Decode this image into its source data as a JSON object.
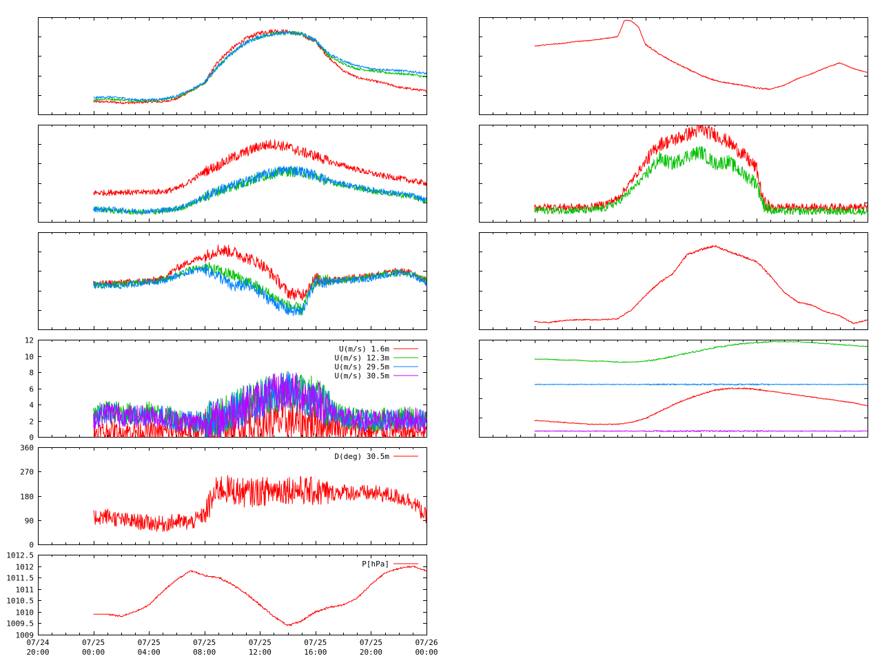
{
  "colors": {
    "red": "#ff0000",
    "green": "#00c000",
    "blue": "#0080ff",
    "purple": "#c000ff",
    "axis": "#000000"
  },
  "time_axis": {
    "tick_labels": [
      {
        "date": "07/24",
        "time": "20:00"
      },
      {
        "date": "07/25",
        "time": "00:00"
      },
      {
        "date": "07/25",
        "time": "04:00"
      },
      {
        "date": "07/25",
        "time": "08:00"
      },
      {
        "date": "07/25",
        "time": "12:00"
      },
      {
        "date": "07/25",
        "time": "16:00"
      },
      {
        "date": "07/25",
        "time": "20:00"
      },
      {
        "date": "07/26",
        "time": "00:00"
      }
    ],
    "range_hours": [
      "07/24 20:00",
      "07/26 00:00"
    ]
  },
  "chart_data": [
    {
      "id": "temp-profile",
      "type": "line",
      "grid": false,
      "x_hours": [
        0,
        1,
        2,
        3,
        4,
        5,
        6,
        7,
        8,
        9,
        10,
        11,
        12,
        13,
        14,
        15,
        16,
        17,
        18,
        19,
        20,
        21,
        22,
        23,
        24
      ],
      "ylim": [
        0,
        100
      ],
      "series": [
        {
          "color": "red",
          "values": [
            13,
            13,
            12,
            12,
            13,
            13,
            16,
            24,
            32,
            55,
            68,
            78,
            84,
            86,
            85,
            82,
            75,
            58,
            45,
            38,
            35,
            32,
            28,
            26,
            24
          ]
        },
        {
          "color": "green",
          "values": [
            15,
            16,
            15,
            14,
            14,
            15,
            18,
            24,
            32,
            50,
            63,
            74,
            80,
            83,
            84,
            83,
            76,
            60,
            52,
            47,
            45,
            43,
            42,
            41,
            38
          ]
        },
        {
          "color": "blue",
          "values": [
            17,
            18,
            17,
            15,
            15,
            16,
            19,
            25,
            33,
            50,
            63,
            74,
            80,
            83,
            84,
            83,
            76,
            62,
            55,
            50,
            47,
            46,
            45,
            44,
            42
          ]
        }
      ]
    },
    {
      "id": "right-step",
      "type": "line",
      "grid": false,
      "x_hours": [
        0,
        1,
        2,
        3,
        4,
        5,
        6,
        6.5,
        7,
        7.5,
        8,
        9,
        10,
        11,
        12,
        13,
        14,
        15,
        16,
        17,
        18,
        19,
        20,
        21,
        22,
        23,
        24
      ],
      "ylim": [
        0,
        100
      ],
      "series": [
        {
          "color": "red",
          "values": [
            70,
            72,
            73,
            75,
            76,
            78,
            80,
            97,
            96,
            90,
            72,
            62,
            54,
            47,
            40,
            35,
            32,
            30,
            27,
            26,
            30,
            37,
            42,
            48,
            53,
            47,
            43
          ]
        }
      ]
    },
    {
      "id": "row2-left",
      "type": "line",
      "grid": false,
      "x_hours": [
        0,
        1,
        2,
        3,
        4,
        5,
        6,
        7,
        8,
        9,
        10,
        11,
        12,
        13,
        14,
        15,
        16,
        17,
        18,
        19,
        20,
        21,
        22,
        23,
        24
      ],
      "ylim": [
        0,
        100
      ],
      "series": [
        {
          "color": "red",
          "values": [
            30,
            30,
            31,
            30,
            31,
            31,
            34,
            42,
            52,
            58,
            66,
            72,
            78,
            80,
            77,
            72,
            68,
            62,
            58,
            54,
            50,
            47,
            45,
            42,
            40
          ]
        },
        {
          "color": "green",
          "values": [
            13,
            12,
            11,
            10,
            10,
            11,
            13,
            18,
            25,
            32,
            36,
            41,
            46,
            50,
            52,
            51,
            47,
            41,
            38,
            35,
            32,
            30,
            28,
            26,
            21
          ]
        },
        {
          "color": "blue",
          "values": [
            13,
            13,
            12,
            11,
            11,
            12,
            14,
            19,
            26,
            33,
            37,
            42,
            47,
            51,
            54,
            52,
            48,
            42,
            39,
            36,
            33,
            31,
            29,
            27,
            22
          ]
        }
      ]
    },
    {
      "id": "row2-right",
      "type": "line",
      "grid": false,
      "x_hours": [
        0,
        1,
        2,
        3,
        4,
        5,
        6,
        7,
        8,
        9,
        10,
        11,
        12,
        13,
        14,
        15,
        16,
        16.5,
        17,
        18,
        19,
        20,
        21,
        22,
        23,
        24
      ],
      "ylim": [
        0,
        100
      ],
      "series": [
        {
          "color": "red",
          "values": [
            15,
            15,
            15,
            15,
            15,
            18,
            24,
            42,
            62,
            80,
            84,
            90,
            95,
            90,
            82,
            70,
            55,
            20,
            15,
            15,
            15,
            15,
            15,
            15,
            15,
            15
          ]
        },
        {
          "color": "green",
          "values": [
            12,
            12,
            12,
            12,
            12,
            14,
            20,
            33,
            48,
            65,
            60,
            68,
            72,
            60,
            62,
            50,
            40,
            18,
            12,
            11,
            11,
            11,
            11,
            11,
            11,
            11
          ]
        }
      ]
    },
    {
      "id": "row3-left",
      "type": "line",
      "grid": false,
      "x_hours": [
        0,
        1,
        2,
        3,
        4,
        5,
        6,
        7,
        8,
        9,
        10,
        11,
        12,
        13,
        14,
        15,
        16,
        17,
        18,
        19,
        20,
        21,
        22,
        23,
        24
      ],
      "ylim": [
        0,
        100
      ],
      "series": [
        {
          "color": "red",
          "values": [
            47,
            47,
            48,
            49,
            50,
            52,
            63,
            70,
            75,
            82,
            80,
            74,
            68,
            55,
            38,
            35,
            52,
            51,
            52,
            54,
            56,
            58,
            60,
            58,
            50
          ]
        },
        {
          "color": "green",
          "values": [
            46,
            46,
            46,
            48,
            49,
            51,
            56,
            62,
            64,
            60,
            56,
            50,
            42,
            33,
            24,
            20,
            50,
            50,
            51,
            52,
            54,
            57,
            58,
            57,
            50
          ]
        },
        {
          "color": "blue",
          "values": [
            45,
            45,
            45,
            47,
            49,
            50,
            55,
            60,
            62,
            55,
            44,
            46,
            38,
            28,
            20,
            18,
            49,
            49,
            50,
            51,
            53,
            56,
            58,
            56,
            48
          ]
        }
      ]
    },
    {
      "id": "row3-right",
      "type": "line",
      "grid": false,
      "x_hours": [
        0,
        1,
        2,
        3,
        4,
        5,
        6,
        7,
        8,
        9,
        10,
        11,
        12,
        13,
        14,
        15,
        16,
        17,
        18,
        19,
        20,
        21,
        22,
        23,
        24
      ],
      "ylim": [
        0,
        100
      ],
      "series": [
        {
          "color": "red",
          "values": [
            8,
            7,
            9,
            10,
            10,
            10,
            11,
            20,
            35,
            48,
            58,
            77,
            82,
            86,
            80,
            75,
            70,
            55,
            38,
            28,
            25,
            18,
            14,
            6,
            10
          ]
        }
      ]
    },
    {
      "id": "wind-speed",
      "type": "line",
      "grid": false,
      "x_hours": [
        0,
        1,
        2,
        3,
        4,
        5,
        6,
        7,
        8,
        9,
        10,
        11,
        12,
        13,
        14,
        15,
        16,
        17,
        18,
        19,
        20,
        21,
        22,
        23,
        24
      ],
      "ylim": [
        0,
        12
      ],
      "yticks": [
        0,
        2,
        4,
        6,
        8,
        10,
        12
      ],
      "legend_position": "top-right",
      "series": [
        {
          "name": "U(m/s)  1.6m",
          "color": "red",
          "values": [
            0.5,
            0.6,
            0.5,
            0.7,
            0.6,
            0.5,
            0.8,
            0.6,
            0.7,
            1.0,
            1.4,
            1.6,
            1.5,
            1.8,
            2.0,
            1.8,
            1.7,
            1.5,
            1.2,
            0.8,
            0.6,
            0.5,
            0.6,
            0.7,
            0.6
          ]
        },
        {
          "name": "U(m/s) 12.3m",
          "color": "green",
          "values": [
            2.5,
            3.2,
            3.0,
            2.8,
            3.0,
            2.6,
            2.2,
            2.0,
            1.9,
            2.3,
            3.2,
            4.0,
            4.8,
            5.5,
            6.0,
            5.5,
            5.0,
            3.5,
            2.5,
            2.2,
            2.0,
            2.2,
            2.3,
            2.4,
            2.0
          ]
        },
        {
          "name": "U(m/s) 29.5m",
          "color": "blue",
          "values": [
            2.3,
            3.0,
            2.8,
            2.6,
            2.8,
            2.5,
            2.1,
            1.9,
            1.8,
            2.2,
            3.0,
            3.8,
            4.5,
            5.2,
            5.7,
            5.2,
            4.7,
            3.3,
            2.4,
            2.1,
            1.9,
            2.1,
            2.2,
            2.3,
            1.9
          ]
        },
        {
          "name": "U(m/s) 30.5m",
          "color": "purple",
          "values": [
            2.2,
            3.1,
            2.7,
            2.5,
            2.6,
            2.4,
            2.0,
            1.8,
            1.7,
            2.1,
            3.1,
            3.9,
            4.6,
            5.3,
            5.8,
            5.3,
            4.8,
            3.4,
            2.3,
            2.0,
            1.9,
            2.0,
            2.2,
            2.3,
            1.8
          ]
        }
      ]
    },
    {
      "id": "levels",
      "type": "line",
      "grid": false,
      "x_hours": [
        0,
        1,
        2,
        3,
        4,
        5,
        6,
        7,
        8,
        9,
        10,
        11,
        12,
        13,
        14,
        15,
        16,
        17,
        18,
        19,
        20,
        21,
        22,
        23,
        24
      ],
      "ylim": [
        0,
        100
      ],
      "series": [
        {
          "color": "green",
          "values": [
            80,
            80,
            79,
            79,
            78,
            78,
            77,
            77,
            78,
            80,
            83,
            86,
            89,
            92,
            94,
            96,
            97,
            98,
            98,
            98,
            97,
            96,
            95,
            94,
            93
          ]
        },
        {
          "color": "blue",
          "values": [
            54,
            54,
            54,
            54,
            54,
            54,
            54,
            54,
            54,
            54,
            54,
            54,
            54,
            54,
            54,
            54,
            54,
            54,
            54,
            54,
            54,
            54,
            54,
            54,
            54
          ]
        },
        {
          "color": "red",
          "values": [
            17,
            16,
            15,
            14,
            13,
            13,
            13,
            15,
            19,
            26,
            33,
            39,
            44,
            48,
            50,
            50,
            49,
            47,
            45,
            43,
            41,
            39,
            37,
            35,
            32
          ]
        },
        {
          "color": "purple",
          "values": [
            6,
            6,
            6,
            6,
            6,
            6,
            6,
            6,
            6,
            6,
            6,
            6,
            6,
            6,
            6,
            6,
            6,
            6,
            6,
            6,
            6,
            6,
            6,
            6,
            6
          ]
        }
      ]
    },
    {
      "id": "wind-direction",
      "type": "line",
      "grid": false,
      "x_hours": [
        0,
        1,
        2,
        3,
        4,
        5,
        6,
        7,
        8,
        9,
        10,
        11,
        12,
        13,
        14,
        15,
        16,
        17,
        18,
        19,
        20,
        21,
        22,
        23,
        24
      ],
      "ylim": [
        0,
        360
      ],
      "yticks": [
        0,
        90,
        180,
        270,
        360
      ],
      "legend_position": "top-right",
      "series": [
        {
          "name": "D(deg)  30.5m",
          "color": "red",
          "values": [
            100,
            105,
            90,
            85,
            80,
            75,
            85,
            80,
            110,
            210,
            200,
            190,
            195,
            200,
            205,
            200,
            195,
            190,
            195,
            190,
            190,
            185,
            175,
            160,
            100
          ]
        }
      ]
    },
    {
      "id": "pressure",
      "type": "line",
      "grid": false,
      "x_hours": [
        0,
        1,
        2,
        3,
        4,
        5,
        6,
        7,
        8,
        9,
        10,
        11,
        12,
        13,
        14,
        15,
        16,
        17,
        18,
        19,
        20,
        21,
        22,
        23,
        24
      ],
      "ylim": [
        1009,
        1012.5
      ],
      "yticks": [
        1009,
        1009.5,
        1010,
        1010.5,
        1011,
        1011.5,
        1012,
        1012.5
      ],
      "ytick_labels": [
        "1009",
        "1009.5",
        "1010",
        "1010.5",
        "1011",
        "1011.5",
        "1012",
        "1012.5"
      ],
      "legend_position": "top-right",
      "series": [
        {
          "name": "P[hPa]",
          "color": "red",
          "values": [
            1009.9,
            1009.9,
            1009.8,
            1010.0,
            1010.3,
            1010.9,
            1011.4,
            1011.8,
            1011.6,
            1011.5,
            1011.2,
            1010.8,
            1010.3,
            1009.8,
            1009.4,
            1009.6,
            1010.0,
            1010.2,
            1010.3,
            1010.6,
            1011.2,
            1011.7,
            1011.9,
            1012.0,
            1011.8
          ]
        }
      ]
    }
  ]
}
